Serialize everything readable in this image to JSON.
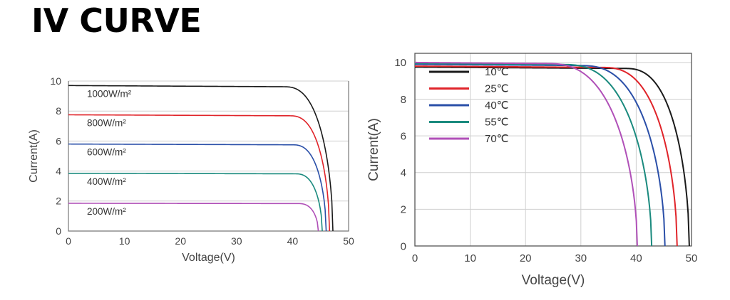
{
  "page": {
    "title": "IV CURVE"
  },
  "chart_data": [
    {
      "type": "line",
      "title": "",
      "xlabel": "Voltage(V)",
      "ylabel": "Current(A)",
      "xlim": [
        0,
        50
      ],
      "ylim": [
        0,
        10
      ],
      "xticks": [
        0,
        10,
        20,
        30,
        40,
        50
      ],
      "yticks": [
        0,
        2,
        4,
        6,
        8,
        10
      ],
      "grid": "horizontal",
      "legend": "inline-left",
      "series": [
        {
          "name": "1000W/m²",
          "color": "#1a1a1a",
          "isc": 9.7,
          "voc": 47.2,
          "knee": 38.5,
          "points": [
            [
              0,
              9.7
            ],
            [
              36,
              9.62
            ],
            [
              40,
              8.8
            ],
            [
              43,
              6.8
            ],
            [
              45,
              4.4
            ],
            [
              46.5,
              2.0
            ],
            [
              47.2,
              0
            ]
          ]
        },
        {
          "name": "800W/m²",
          "color": "#e0242a",
          "isc": 7.75,
          "voc": 46.6,
          "knee": 39.5,
          "points": [
            [
              0,
              7.75
            ],
            [
              38,
              7.7
            ],
            [
              41,
              7.3
            ],
            [
              43,
              6.0
            ],
            [
              45,
              3.6
            ],
            [
              46.6,
              0
            ]
          ]
        },
        {
          "name": "600W/m²",
          "color": "#2a4fa8",
          "isc": 5.8,
          "voc": 46.0,
          "knee": 40.0,
          "points": [
            [
              0,
              5.8
            ],
            [
              39,
              5.77
            ],
            [
              41,
              5.5
            ],
            [
              43,
              4.5
            ],
            [
              45,
              2.2
            ],
            [
              46.0,
              0
            ]
          ]
        },
        {
          "name": "400W/m²",
          "color": "#1a8a7e",
          "isc": 3.85,
          "voc": 45.3,
          "knee": 40.5,
          "points": [
            [
              0,
              3.85
            ],
            [
              40,
              3.82
            ],
            [
              42,
              3.6
            ],
            [
              44,
              2.3
            ],
            [
              45.3,
              0
            ]
          ]
        },
        {
          "name": "200W/m²",
          "color": "#b050b8",
          "isc": 1.85,
          "voc": 44.6,
          "knee": 41.0,
          "points": [
            [
              0,
              1.85
            ],
            [
              41,
              1.83
            ],
            [
              42.5,
              1.7
            ],
            [
              43.8,
              1.0
            ],
            [
              44.6,
              0
            ]
          ]
        }
      ]
    },
    {
      "type": "line",
      "title": "",
      "xlabel": "Voltage(V)",
      "ylabel": "Current(A)",
      "xlim": [
        0,
        50
      ],
      "ylim": [
        0,
        10.5
      ],
      "xticks": [
        0,
        10,
        20,
        30,
        40,
        50
      ],
      "yticks": [
        0,
        2,
        4,
        6,
        8,
        10
      ],
      "grid": "both",
      "legend": "top-left",
      "series": [
        {
          "name": "10℃",
          "color": "#1a1a1a",
          "isc": 9.75,
          "voc": 49.6,
          "knee": 38.0,
          "points": [
            [
              0,
              9.75
            ],
            [
              40,
              9.6
            ],
            [
              43,
              8.8
            ],
            [
              46,
              6.0
            ],
            [
              48,
              3.0
            ],
            [
              49.6,
              0
            ]
          ]
        },
        {
          "name": "25℃",
          "color": "#e0242a",
          "isc": 9.8,
          "voc": 47.4,
          "knee": 34.0,
          "points": [
            [
              0,
              9.8
            ],
            [
              36,
              9.6
            ],
            [
              40,
              8.6
            ],
            [
              43,
              6.0
            ],
            [
              45.5,
              3.0
            ],
            [
              47.4,
              0
            ]
          ]
        },
        {
          "name": "40℃",
          "color": "#2a4fa8",
          "isc": 9.9,
          "voc": 45.2,
          "knee": 30.0,
          "points": [
            [
              0,
              9.9
            ],
            [
              33,
              9.6
            ],
            [
              37,
              8.5
            ],
            [
              40,
              6.2
            ],
            [
              43,
              3.0
            ],
            [
              45.2,
              0
            ]
          ]
        },
        {
          "name": "55℃",
          "color": "#1a8a7e",
          "isc": 9.95,
          "voc": 42.8,
          "knee": 27.0,
          "points": [
            [
              0,
              9.95
            ],
            [
              30,
              9.7
            ],
            [
              34,
              8.5
            ],
            [
              37,
              6.2
            ],
            [
              40.5,
              3.0
            ],
            [
              42.8,
              0
            ]
          ]
        },
        {
          "name": "70℃",
          "color": "#b050b8",
          "isc": 10.0,
          "voc": 40.2,
          "knee": 24.0,
          "points": [
            [
              0,
              10.0
            ],
            [
              27,
              9.7
            ],
            [
              31,
              8.5
            ],
            [
              34,
              6.2
            ],
            [
              37.5,
              3.0
            ],
            [
              40.2,
              0
            ]
          ]
        }
      ]
    }
  ]
}
